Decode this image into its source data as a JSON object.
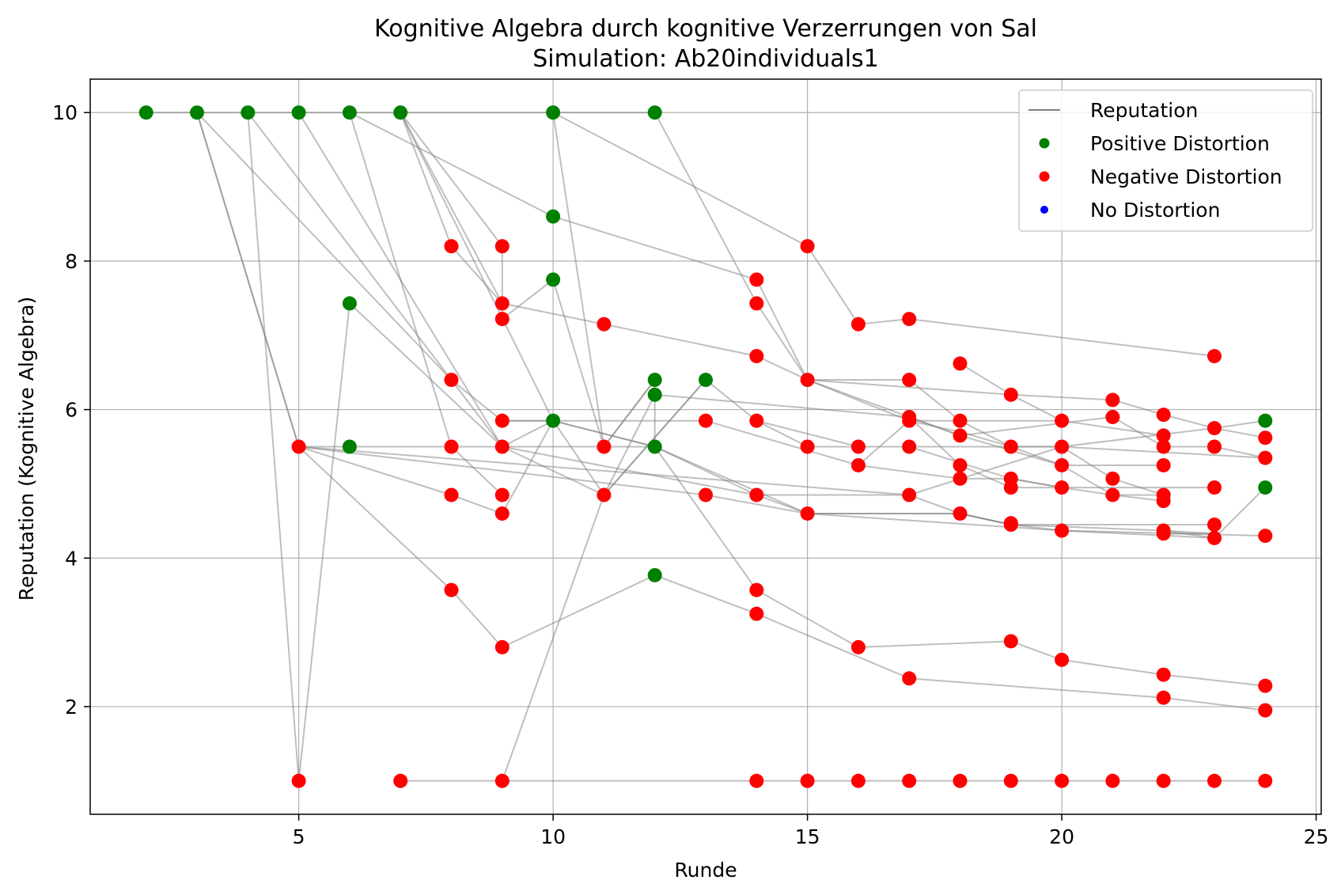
{
  "chart_data": {
    "type": "scatter",
    "title": "Kognitive Algebra durch kognitive Verzerrungen von Sal",
    "subtitle": "Simulation: Ab20individuals1",
    "xlabel": "Runde",
    "ylabel": "Reputation (Kognitive Algebra)",
    "xlim": [
      0.9,
      25.1
    ],
    "ylim": [
      0.55,
      10.45
    ],
    "xticks": [
      5,
      10,
      15,
      20,
      25
    ],
    "yticks": [
      2,
      4,
      6,
      8,
      10
    ],
    "grid": true,
    "legend_position": "top-right",
    "legend": [
      {
        "label": "Reputation",
        "kind": "line",
        "color": "#808080"
      },
      {
        "label": "Positive Distortion",
        "kind": "marker",
        "color": "#008000"
      },
      {
        "label": "Negative Distortion",
        "kind": "marker",
        "color": "#ff0000"
      },
      {
        "label": "No Distortion",
        "kind": "marker",
        "color": "#0000ff"
      }
    ],
    "reputation_lines": [
      [
        [
          2,
          10
        ],
        [
          3,
          10
        ],
        [
          4,
          10
        ],
        [
          5,
          10
        ],
        [
          6,
          10
        ],
        [
          7,
          10
        ],
        [
          10,
          10
        ],
        [
          12,
          10
        ]
      ],
      [
        [
          3,
          10
        ],
        [
          5,
          5.5
        ],
        [
          6,
          5.5
        ]
      ],
      [
        [
          3,
          10
        ],
        [
          5,
          5.5
        ],
        [
          8,
          4.85
        ],
        [
          9,
          4.6
        ],
        [
          10,
          5.85
        ],
        [
          11,
          4.85
        ],
        [
          12,
          6.2
        ]
      ],
      [
        [
          3,
          10
        ],
        [
          8,
          6.4
        ],
        [
          9,
          5.5
        ],
        [
          11,
          4.85
        ],
        [
          13,
          6.4
        ],
        [
          14,
          5.85
        ],
        [
          15,
          5.5
        ],
        [
          16,
          5.5
        ]
      ],
      [
        [
          4,
          10
        ],
        [
          5,
          1
        ],
        [
          6,
          7.43
        ],
        [
          9,
          5.5
        ],
        [
          14,
          4.85
        ],
        [
          15,
          4.6
        ],
        [
          20,
          4.37
        ],
        [
          23,
          4.27
        ],
        [
          24,
          4.95
        ]
      ],
      [
        [
          4,
          10
        ],
        [
          8,
          6.4
        ],
        [
          9,
          5.85
        ],
        [
          10,
          5.85
        ],
        [
          12,
          5.5
        ],
        [
          14,
          4.85
        ],
        [
          17,
          4.85
        ],
        [
          20,
          5.5
        ],
        [
          23,
          5.75
        ],
        [
          24,
          5.85
        ]
      ],
      [
        [
          5,
          10
        ],
        [
          9,
          5.5
        ],
        [
          10,
          5.85
        ],
        [
          12,
          5.5
        ],
        [
          15,
          4.6
        ],
        [
          18,
          4.6
        ],
        [
          19,
          4.45
        ],
        [
          22,
          4.37
        ],
        [
          23,
          4.33
        ]
      ],
      [
        [
          6,
          10
        ],
        [
          8,
          5.5
        ],
        [
          9,
          4.85
        ]
      ],
      [
        [
          6,
          10
        ],
        [
          10,
          8.6
        ],
        [
          14,
          7.75
        ],
        [
          15,
          6.4
        ],
        [
          17,
          5.85
        ],
        [
          18,
          5.7
        ],
        [
          19,
          5.5
        ],
        [
          20,
          5.5
        ],
        [
          21,
          5.07
        ],
        [
          22,
          4.85
        ],
        [
          22,
          4.77
        ]
      ],
      [
        [
          7,
          10
        ],
        [
          9,
          7.43
        ],
        [
          11,
          7.15
        ],
        [
          14,
          6.72
        ],
        [
          15,
          6.4
        ],
        [
          19,
          6.2
        ],
        [
          21,
          6.13
        ],
        [
          22,
          5.93
        ],
        [
          23,
          5.75
        ],
        [
          24,
          5.62
        ]
      ],
      [
        [
          7,
          10
        ],
        [
          9,
          8.2
        ],
        [
          9,
          7.22
        ],
        [
          10,
          7.75
        ],
        [
          11,
          5.5
        ],
        [
          12,
          6.4
        ],
        [
          12,
          5.5
        ]
      ],
      [
        [
          7,
          10
        ],
        [
          8,
          8.2
        ],
        [
          9,
          7.43
        ]
      ],
      [
        [
          7,
          10
        ],
        [
          10,
          5.85
        ]
      ],
      [
        [
          10,
          10
        ],
        [
          11,
          5.5
        ],
        [
          12,
          6.4
        ]
      ],
      [
        [
          10,
          10
        ],
        [
          15,
          8.2
        ],
        [
          16,
          7.15
        ],
        [
          17,
          7.22
        ],
        [
          23,
          6.72
        ]
      ],
      [
        [
          12,
          10
        ],
        [
          14,
          7.43
        ],
        [
          15,
          6.4
        ],
        [
          17,
          6.4
        ],
        [
          18,
          5.85
        ],
        [
          19,
          5.5
        ],
        [
          20,
          5.25
        ],
        [
          21,
          4.85
        ],
        [
          22,
          4.85
        ]
      ],
      [
        [
          5,
          5.5
        ],
        [
          8,
          3.57
        ],
        [
          9,
          2.8
        ],
        [
          12,
          3.77
        ],
        [
          14,
          3.25
        ],
        [
          17,
          2.38
        ],
        [
          22,
          2.12
        ],
        [
          24,
          1.95
        ]
      ],
      [
        [
          6,
          5.5
        ],
        [
          12,
          5.5
        ],
        [
          14,
          3.57
        ],
        [
          16,
          2.8
        ],
        [
          19,
          2.88
        ],
        [
          20,
          2.63
        ],
        [
          22,
          2.43
        ],
        [
          24,
          2.28
        ]
      ],
      [
        [
          5,
          5.5
        ],
        [
          13,
          4.85
        ],
        [
          15,
          4.6
        ],
        [
          18,
          4.6
        ],
        [
          19,
          4.45
        ],
        [
          20,
          4.37
        ],
        [
          24,
          4.3
        ]
      ],
      [
        [
          5,
          5.5
        ],
        [
          17,
          4.85
        ],
        [
          18,
          4.6
        ],
        [
          19,
          4.45
        ],
        [
          23,
          4.45
        ]
      ],
      [
        [
          7,
          1
        ],
        [
          14,
          1
        ],
        [
          15,
          1
        ],
        [
          16,
          1
        ],
        [
          17,
          1
        ],
        [
          18,
          1
        ],
        [
          19,
          1
        ],
        [
          20,
          1
        ],
        [
          21,
          1
        ],
        [
          22,
          1
        ],
        [
          23,
          1
        ],
        [
          24,
          1
        ]
      ],
      [
        [
          9,
          1
        ],
        [
          11,
          4.85
        ],
        [
          13,
          6.4
        ]
      ],
      [
        [
          9,
          5.85
        ],
        [
          13,
          5.85
        ],
        [
          16,
          5.25
        ],
        [
          18,
          5.07
        ],
        [
          19,
          5.07
        ],
        [
          20,
          4.95
        ],
        [
          21,
          4.85
        ],
        [
          22,
          4.77
        ]
      ],
      [
        [
          14,
          5.85
        ],
        [
          16,
          5.5
        ],
        [
          17,
          5.5
        ],
        [
          19,
          5.07
        ],
        [
          20,
          4.95
        ],
        [
          23,
          4.95
        ]
      ],
      [
        [
          12,
          6.2
        ],
        [
          17,
          5.9
        ],
        [
          18,
          5.25
        ],
        [
          19,
          4.95
        ],
        [
          20,
          4.95
        ]
      ],
      [
        [
          15,
          6.4
        ],
        [
          17,
          5.9
        ],
        [
          18,
          5.65
        ],
        [
          21,
          5.9
        ],
        [
          22,
          5.5
        ],
        [
          23,
          5.5
        ],
        [
          24,
          5.35
        ]
      ],
      [
        [
          17,
          5.9
        ],
        [
          18,
          5.65
        ],
        [
          20,
          5.25
        ],
        [
          22,
          5.25
        ]
      ],
      [
        [
          16,
          5.25
        ],
        [
          17,
          5.85
        ],
        [
          18,
          5.85
        ],
        [
          20,
          5.85
        ],
        [
          22,
          5.65
        ]
      ],
      [
        [
          17,
          5.5
        ],
        [
          19,
          5.5
        ],
        [
          20,
          5.5
        ],
        [
          24,
          5.35
        ]
      ],
      [
        [
          18,
          6.62
        ],
        [
          19,
          6.2
        ],
        [
          20,
          5.85
        ]
      ],
      [
        [
          22,
          4.33
        ],
        [
          23,
          4.33
        ]
      ],
      [
        [
          22,
          4.37
        ],
        [
          23,
          4.27
        ]
      ]
    ],
    "positive_points": [
      [
        2,
        10
      ],
      [
        3,
        10
      ],
      [
        4,
        10
      ],
      [
        5,
        10
      ],
      [
        6,
        10
      ],
      [
        7,
        10
      ],
      [
        10,
        10
      ],
      [
        12,
        10
      ],
      [
        10,
        8.6
      ],
      [
        10,
        7.75
      ],
      [
        6,
        7.43
      ],
      [
        6,
        5.5
      ],
      [
        10,
        5.85
      ],
      [
        12,
        6.4
      ],
      [
        12,
        6.2
      ],
      [
        12,
        5.5
      ],
      [
        13,
        6.4
      ],
      [
        12,
        3.77
      ],
      [
        24,
        5.85
      ],
      [
        24,
        4.95
      ]
    ],
    "negative_points": [
      [
        5,
        5.5
      ],
      [
        5,
        1
      ],
      [
        7,
        1
      ],
      [
        8,
        8.2
      ],
      [
        8,
        6.4
      ],
      [
        8,
        5.5
      ],
      [
        8,
        4.85
      ],
      [
        8,
        3.57
      ],
      [
        9,
        8.2
      ],
      [
        9,
        7.43
      ],
      [
        9,
        7.22
      ],
      [
        9,
        5.85
      ],
      [
        9,
        5.5
      ],
      [
        9,
        4.85
      ],
      [
        9,
        4.6
      ],
      [
        9,
        2.8
      ],
      [
        9,
        1
      ],
      [
        11,
        7.15
      ],
      [
        11,
        5.5
      ],
      [
        11,
        4.85
      ],
      [
        13,
        5.85
      ],
      [
        13,
        4.85
      ],
      [
        14,
        7.75
      ],
      [
        14,
        7.43
      ],
      [
        14,
        6.72
      ],
      [
        14,
        5.85
      ],
      [
        14,
        4.85
      ],
      [
        14,
        3.57
      ],
      [
        14,
        3.25
      ],
      [
        14,
        1
      ],
      [
        15,
        8.2
      ],
      [
        15,
        6.4
      ],
      [
        15,
        5.5
      ],
      [
        15,
        4.6
      ],
      [
        15,
        1
      ],
      [
        16,
        7.15
      ],
      [
        16,
        5.5
      ],
      [
        16,
        5.25
      ],
      [
        16,
        2.8
      ],
      [
        16,
        1
      ],
      [
        17,
        7.22
      ],
      [
        17,
        6.4
      ],
      [
        17,
        5.9
      ],
      [
        17,
        5.85
      ],
      [
        17,
        5.5
      ],
      [
        17,
        4.85
      ],
      [
        17,
        2.38
      ],
      [
        17,
        1
      ],
      [
        18,
        6.62
      ],
      [
        18,
        5.85
      ],
      [
        18,
        5.65
      ],
      [
        18,
        5.25
      ],
      [
        18,
        5.07
      ],
      [
        18,
        4.6
      ],
      [
        18,
        1
      ],
      [
        19,
        6.2
      ],
      [
        19,
        5.5
      ],
      [
        19,
        5.07
      ],
      [
        19,
        4.95
      ],
      [
        19,
        4.47
      ],
      [
        19,
        4.45
      ],
      [
        19,
        2.88
      ],
      [
        19,
        1
      ],
      [
        20,
        5.85
      ],
      [
        20,
        5.5
      ],
      [
        20,
        5.25
      ],
      [
        20,
        4.95
      ],
      [
        20,
        4.37
      ],
      [
        20,
        2.63
      ],
      [
        20,
        1
      ],
      [
        21,
        6.13
      ],
      [
        21,
        5.9
      ],
      [
        21,
        5.07
      ],
      [
        21,
        4.85
      ],
      [
        21,
        1
      ],
      [
        22,
        5.93
      ],
      [
        22,
        5.65
      ],
      [
        22,
        5.5
      ],
      [
        22,
        5.25
      ],
      [
        22,
        4.85
      ],
      [
        22,
        4.77
      ],
      [
        22,
        4.37
      ],
      [
        22,
        4.33
      ],
      [
        22,
        2.43
      ],
      [
        22,
        2.12
      ],
      [
        22,
        1
      ],
      [
        23,
        6.72
      ],
      [
        23,
        5.75
      ],
      [
        23,
        5.5
      ],
      [
        23,
        4.95
      ],
      [
        23,
        4.45
      ],
      [
        23,
        4.27
      ],
      [
        23,
        1
      ],
      [
        24,
        5.62
      ],
      [
        24,
        5.35
      ],
      [
        24,
        4.3
      ],
      [
        24,
        2.28
      ],
      [
        24,
        1.95
      ],
      [
        24,
        1
      ]
    ],
    "no_distortion_points": []
  }
}
